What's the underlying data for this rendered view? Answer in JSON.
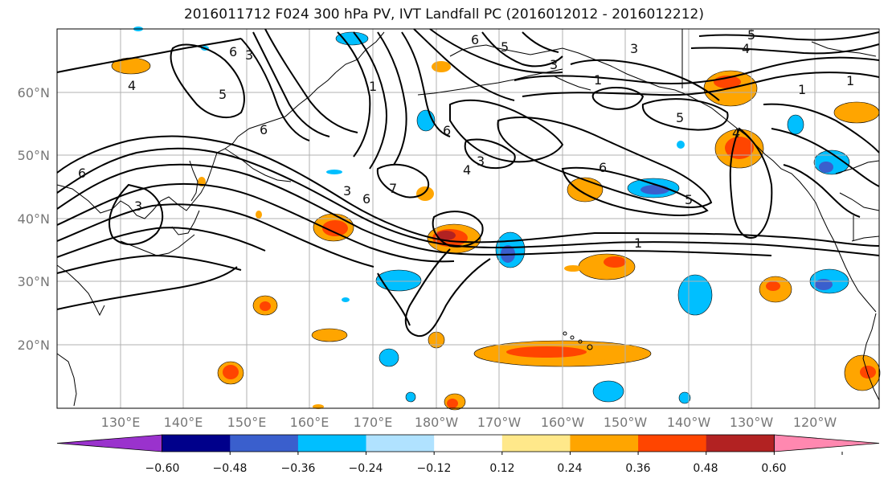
{
  "title": "2016011712 F024 300 hPa PV, IVT Landfall PC (2016012012 - 2016012212)",
  "lat_labels": [
    "60°N",
    "50°N",
    "40°N",
    "30°N",
    "20°N"
  ],
  "lon_labels": [
    "130°E",
    "140°E",
    "150°E",
    "160°E",
    "170°E",
    "180°W",
    "170°W",
    "160°W",
    "150°W",
    "140°W",
    "130°W",
    "120°W"
  ],
  "contour_labels": [
    "6",
    "5",
    "3",
    "4",
    "6",
    "3",
    "6",
    "6",
    "1",
    "3",
    "3",
    "6",
    "4",
    "3",
    "7",
    "6",
    "5",
    "1",
    "5",
    "6",
    "1",
    "5",
    "4",
    "4",
    "3",
    "1",
    "5",
    "1"
  ],
  "colorbar": {
    "ticks": [
      "−0.60",
      "−0.48",
      "−0.36",
      "−0.24",
      "−0.12",
      "0.12",
      "0.24",
      "0.36",
      "0.48",
      "0.60"
    ],
    "colors": [
      "#9a32cd",
      "#00008b",
      "#3a5fcd",
      "#00bfff",
      "#b0e2ff",
      "#ffffff",
      "#ffe88a",
      "#ffa500",
      "#ff4500",
      "#b22222",
      "#ff88b0"
    ]
  }
}
